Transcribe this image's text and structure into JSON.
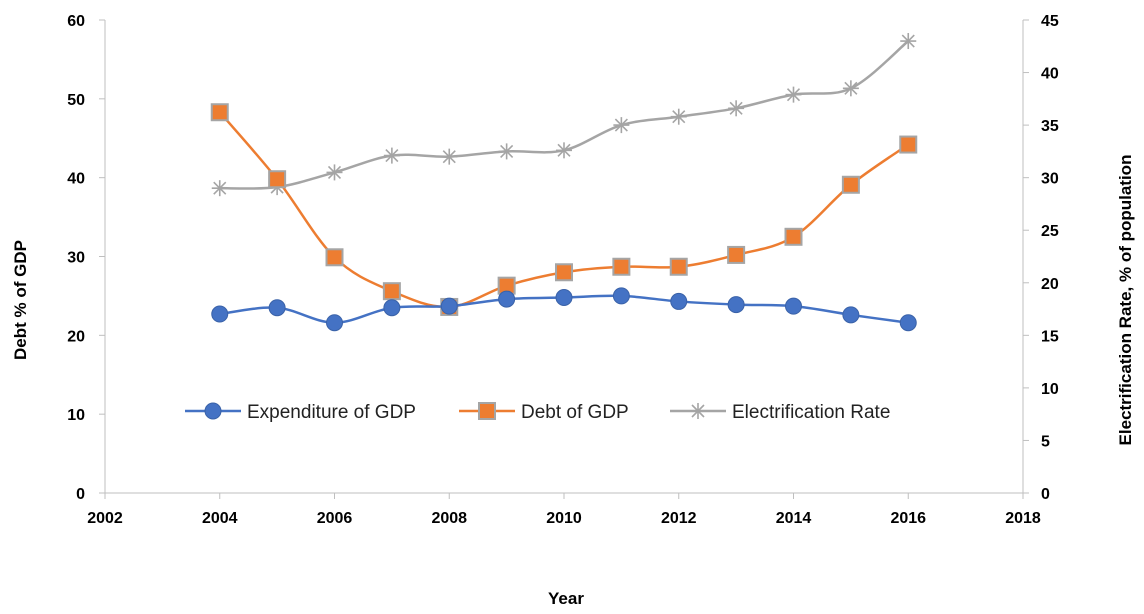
{
  "chart_data": {
    "type": "line",
    "xlabel": "Year",
    "ylabel": "Debt % of GDP",
    "y2label": "Electrification Rate, % of population",
    "xlim": [
      2002,
      2018
    ],
    "ylim": [
      0,
      60
    ],
    "y2lim": [
      0,
      45
    ],
    "x_ticks": [
      "2002",
      "2004",
      "2006",
      "2008",
      "2010",
      "2012",
      "2014",
      "2016",
      "2018"
    ],
    "y_ticks": [
      "0",
      "10",
      "20",
      "30",
      "40",
      "50",
      "60"
    ],
    "y2_ticks": [
      "0",
      "5",
      "10",
      "15",
      "20",
      "25",
      "30",
      "35",
      "40",
      "45"
    ],
    "grid": false,
    "legend_position": "inside-lower-center",
    "x": [
      2004,
      2005,
      2006,
      2007,
      2008,
      2009,
      2010,
      2011,
      2012,
      2013,
      2014,
      2015,
      2016
    ],
    "series": [
      {
        "name": "Expenditure of GDP",
        "axis": "left",
        "color": "#4472C4",
        "marker": "circle",
        "values": [
          22.7,
          23.5,
          21.6,
          23.5,
          23.7,
          24.6,
          24.8,
          25.0,
          24.3,
          23.9,
          23.7,
          22.6,
          21.6
        ]
      },
      {
        "name": "Debt of GDP",
        "axis": "left",
        "color": "#ED7D31",
        "marker": "square",
        "values": [
          48.3,
          39.8,
          29.9,
          25.6,
          23.6,
          26.3,
          28.0,
          28.7,
          28.7,
          30.2,
          32.5,
          39.1,
          44.2
        ]
      },
      {
        "name": "Electrification Rate",
        "axis": "right",
        "color": "#A5A5A5",
        "marker": "asterisk",
        "values": [
          29.0,
          29.1,
          30.5,
          32.1,
          32.0,
          32.5,
          32.6,
          35.0,
          35.8,
          36.6,
          37.9,
          38.5,
          43.0
        ]
      }
    ]
  }
}
